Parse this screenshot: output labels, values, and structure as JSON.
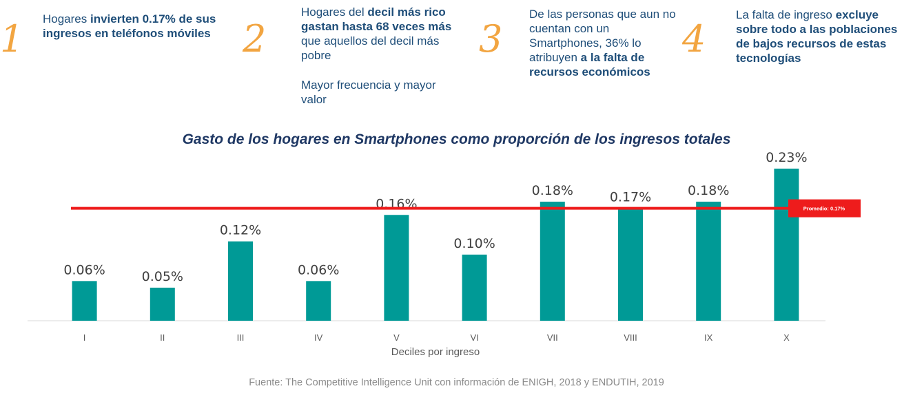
{
  "header_points": [
    {
      "number": "1",
      "paragraphs": [
        [
          {
            "text": "Hogares ",
            "bold": false
          },
          {
            "text": "invierten 0.17% de sus ingresos en teléfonos móviles",
            "bold": true
          }
        ]
      ]
    },
    {
      "number": "2",
      "paragraphs": [
        [
          {
            "text": "Hogares del ",
            "bold": false
          },
          {
            "text": "decil más rico gastan hasta 68 veces más",
            "bold": true
          },
          {
            "text": " que aquellos del decil más pobre",
            "bold": false
          }
        ],
        [
          {
            "text": "Mayor frecuencia y mayor valor",
            "bold": false
          }
        ]
      ]
    },
    {
      "number": "3",
      "paragraphs": [
        [
          {
            "text": "De las personas que aun no cuentan con un Smartphones, 36% lo atribuyen ",
            "bold": false
          },
          {
            "text": "a la falta de recursos económicos",
            "bold": true
          }
        ]
      ]
    },
    {
      "number": "4",
      "paragraphs": [
        [
          {
            "text": "La falta de ingreso ",
            "bold": false
          },
          {
            "text": "excluye sobre todo a las poblaciones de bajos recursos de estas tecnologías",
            "bold": true
          }
        ]
      ]
    }
  ],
  "chart_data": {
    "type": "bar",
    "title": "Gasto de los hogares en Smartphones como proporción de los ingresos totales",
    "xlabel": "Deciles por ingreso",
    "ylabel": "",
    "categories": [
      "I",
      "II",
      "III",
      "IV",
      "V",
      "VI",
      "VII",
      "VIII",
      "IX",
      "X"
    ],
    "values": [
      0.06,
      0.05,
      0.12,
      0.06,
      0.16,
      0.1,
      0.18,
      0.17,
      0.18,
      0.23
    ],
    "value_labels": [
      "0.06%",
      "0.05%",
      "0.12%",
      "0.06%",
      "0.16%",
      "0.10%",
      "0.18%",
      "0.17%",
      "0.18%",
      "0.23%"
    ],
    "ylim": [
      0,
      0.23
    ],
    "grid": false,
    "bar_color": "#009a96",
    "reference_line": {
      "value": 0.17,
      "label": "Promedio: 0.17%",
      "color": "#ee1c1c"
    }
  },
  "source": "Fuente: The Competitive Intelligence Unit con información de ENIGH, 2018 y ENDUTIH, 2019"
}
